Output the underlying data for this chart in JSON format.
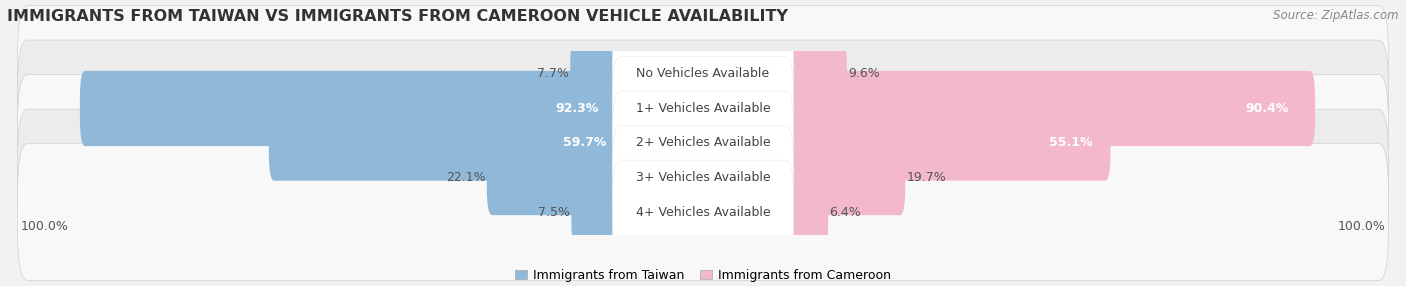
{
  "title": "IMMIGRANTS FROM TAIWAN VS IMMIGRANTS FROM CAMEROON VEHICLE AVAILABILITY",
  "source": "Source: ZipAtlas.com",
  "categories": [
    "No Vehicles Available",
    "1+ Vehicles Available",
    "2+ Vehicles Available",
    "3+ Vehicles Available",
    "4+ Vehicles Available"
  ],
  "taiwan_values": [
    7.7,
    92.3,
    59.7,
    22.1,
    7.5
  ],
  "cameroon_values": [
    9.6,
    90.4,
    55.1,
    19.7,
    6.4
  ],
  "taiwan_color": "#90b8d8",
  "taiwan_color_bright": "#5b9bd5",
  "cameroon_color": "#f4b8cc",
  "cameroon_color_bright": "#e8648a",
  "taiwan_label": "Immigrants from Taiwan",
  "cameroon_label": "Immigrants from Cameroon",
  "bg_color": "#f2f2f2",
  "row_bg_even": "#f8f8f8",
  "row_bg_odd": "#ececec",
  "center_label_bg": "#ffffff",
  "axis_label": "100.0%",
  "max_val": 100.0,
  "title_fontsize": 11.5,
  "source_fontsize": 8.5,
  "cat_fontsize": 9,
  "value_fontsize": 9,
  "legend_fontsize": 9
}
